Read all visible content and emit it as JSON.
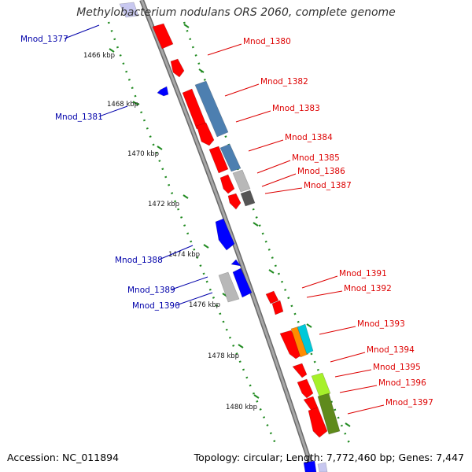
{
  "title": "Methylobacterium nodulans ORS 2060, complete genome",
  "accession": "Accession: NC_011894",
  "summary": "Topology: circular; Length: 7,772,460 bp; Genes: 7,447",
  "colors": {
    "backbone": "#888888",
    "ticks": "#228b22",
    "forward_label": "#dd0000",
    "reverse_label": "#0000aa",
    "gene_red": "#ff0000",
    "gene_blue": "#0000ff",
    "gene_steel": "#4d7fb0",
    "gene_gray": "#b8b8b8",
    "gene_dark": "#555555",
    "gene_orange": "#ff8c00",
    "gene_cyan": "#00c8d8",
    "gene_lime": "#a6f02a",
    "gene_olive": "#5f8a1c"
  },
  "kbp_ticks": [
    "1466 kbp",
    "1468 kbp",
    "1470 kbp",
    "1472 kbp",
    "1474 kbp",
    "1476 kbp",
    "1478 kbp",
    "1480 kbp"
  ],
  "forward_labels": [
    "Mnod_1380",
    "Mnod_1382",
    "Mnod_1383",
    "Mnod_1384",
    "Mnod_1385",
    "Mnod_1386",
    "Mnod_1387",
    "Mnod_1391",
    "Mnod_1392",
    "Mnod_1393",
    "Mnod_1394",
    "Mnod_1395",
    "Mnod_1396",
    "Mnod_1397"
  ],
  "reverse_labels": [
    "Mnod_1377",
    "Mnod_1381",
    "Mnod_1388",
    "Mnod_1389",
    "Mnod_1390"
  ]
}
